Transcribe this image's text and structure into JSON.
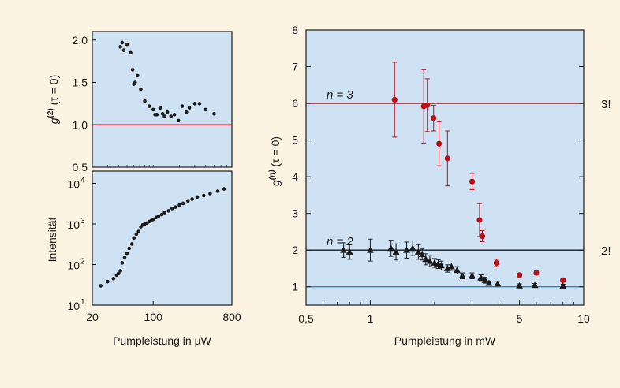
{
  "colors": {
    "background": "#fdf3e3",
    "plot_area": "#cfe2f3",
    "red_series": "#b5121b",
    "black_series": "#1a1a1a",
    "reference_one": "#1e88c8"
  },
  "chart_data": [
    {
      "type": "scatter",
      "panel": "top-left",
      "ylabel": "g^(2) (τ = 0)",
      "ylabel_parts": {
        "g": "g",
        "sup": "(2)",
        "rest": " (τ = 0)"
      },
      "xscale": "log",
      "xlim": [
        20,
        800
      ],
      "ylim": [
        0.5,
        2.1
      ],
      "yticks": [
        0.5,
        1.0,
        1.5,
        2.0
      ],
      "ytick_labels": [
        "0,5",
        "1,0",
        "1,5",
        "2,0"
      ],
      "reference_lines": [
        {
          "y": 1.0,
          "color": "#b5121b"
        }
      ],
      "series": [
        {
          "color": "#1a1a1a",
          "x": [
            42,
            44,
            46,
            50,
            55,
            58,
            60,
            62,
            66,
            72,
            80,
            90,
            100,
            105,
            110,
            120,
            128,
            135,
            145,
            160,
            175,
            195,
            215,
            240,
            260,
            300,
            340,
            400,
            500
          ],
          "y": [
            1.92,
            1.97,
            1.88,
            1.95,
            1.85,
            1.65,
            1.48,
            1.5,
            1.58,
            1.42,
            1.28,
            1.22,
            1.18,
            1.12,
            1.12,
            1.2,
            1.13,
            1.1,
            1.15,
            1.1,
            1.12,
            1.05,
            1.22,
            1.15,
            1.2,
            1.25,
            1.25,
            1.18,
            1.13
          ]
        }
      ]
    },
    {
      "type": "scatter",
      "panel": "bottom-left",
      "xlabel": "Pumpleistung in µW",
      "ylabel": "Intensität",
      "xscale": "log",
      "yscale": "log",
      "xlim": [
        20,
        800
      ],
      "ylim": [
        10,
        20000
      ],
      "xticks": [
        20,
        100,
        800
      ],
      "xtick_labels": [
        "20",
        "100",
        "800"
      ],
      "yticks": [
        10,
        100,
        1000,
        10000
      ],
      "ytick_labels": [
        {
          "base": "10",
          "exp": "1"
        },
        {
          "base": "10",
          "exp": "2"
        },
        {
          "base": "10",
          "exp": "3"
        },
        {
          "base": "10",
          "exp": "4"
        }
      ],
      "series": [
        {
          "color": "#1a1a1a",
          "x": [
            25,
            30,
            35,
            38,
            40,
            42,
            44,
            47,
            50,
            53,
            57,
            60,
            64,
            68,
            72,
            76,
            80,
            85,
            90,
            95,
            100,
            108,
            115,
            125,
            135,
            150,
            165,
            180,
            200,
            220,
            250,
            280,
            320,
            380,
            450,
            550,
            650
          ],
          "y": [
            30,
            38,
            45,
            55,
            60,
            70,
            110,
            150,
            190,
            250,
            320,
            450,
            560,
            650,
            850,
            950,
            1000,
            1050,
            1150,
            1200,
            1300,
            1450,
            1550,
            1700,
            1900,
            2100,
            2400,
            2600,
            2900,
            3200,
            3700,
            4100,
            4600,
            5000,
            5600,
            6400,
            7300
          ]
        }
      ]
    },
    {
      "type": "scatter",
      "panel": "right",
      "xlabel": "Pumpleistung in mW",
      "ylabel": "g^(n) (τ = 0)",
      "ylabel_parts": {
        "g": "g",
        "sup": "(n)",
        "rest": " (τ = 0)"
      },
      "xscale": "log",
      "xlim": [
        0.5,
        10
      ],
      "ylim": [
        0.5,
        8
      ],
      "xticks": [
        0.5,
        1,
        5,
        10
      ],
      "xtick_labels": [
        "0,5",
        "1",
        "5",
        "10"
      ],
      "yticks": [
        1,
        2,
        3,
        4,
        5,
        6,
        7,
        8
      ],
      "ytick_labels": [
        "1",
        "2",
        "3",
        "4",
        "5",
        "6",
        "7",
        "8"
      ],
      "reference_lines": [
        {
          "y": 6,
          "color": "#b5121b",
          "annotation": "n = 3",
          "right_label": "3!"
        },
        {
          "y": 2,
          "color": "#1a1a1a",
          "annotation": "n = 2",
          "right_label": "2!"
        },
        {
          "y": 1,
          "color": "#1e88c8"
        }
      ],
      "series": [
        {
          "marker": "circle",
          "color": "#b5121b",
          "x": [
            1.3,
            1.78,
            1.85,
            1.98,
            2.1,
            2.3,
            3.0,
            3.25,
            3.35,
            3.9,
            5.0,
            6.0,
            8.0
          ],
          "y": [
            6.1,
            5.92,
            5.95,
            5.6,
            4.9,
            4.5,
            3.87,
            2.82,
            2.38,
            1.65,
            1.32,
            1.38,
            1.18
          ],
          "err": [
            1.02,
            1.0,
            0.72,
            0.35,
            0.6,
            0.75,
            0.22,
            0.45,
            0.15,
            0.1,
            0.05,
            0.05,
            0.05
          ]
        },
        {
          "marker": "triangle",
          "color": "#1a1a1a",
          "x": [
            0.75,
            0.8,
            1.0,
            1.25,
            1.32,
            1.48,
            1.58,
            1.68,
            1.75,
            1.82,
            1.9,
            2.0,
            2.08,
            2.15,
            2.3,
            2.4,
            2.55,
            2.7,
            3.0,
            3.3,
            3.45,
            3.6,
            3.95,
            5.0,
            5.9,
            8.0
          ],
          "y": [
            2.0,
            1.95,
            2.0,
            2.05,
            1.95,
            2.0,
            2.05,
            1.95,
            1.88,
            1.75,
            1.7,
            1.65,
            1.62,
            1.58,
            1.5,
            1.55,
            1.45,
            1.3,
            1.3,
            1.25,
            1.18,
            1.1,
            1.08,
            1.03,
            1.04,
            1.02
          ],
          "err": [
            0.2,
            0.2,
            0.3,
            0.22,
            0.22,
            0.22,
            0.2,
            0.2,
            0.15,
            0.15,
            0.15,
            0.12,
            0.12,
            0.12,
            0.1,
            0.1,
            0.1,
            0.08,
            0.08,
            0.08,
            0.08,
            0.06,
            0.06,
            0.05,
            0.05,
            0.05
          ]
        }
      ]
    }
  ]
}
